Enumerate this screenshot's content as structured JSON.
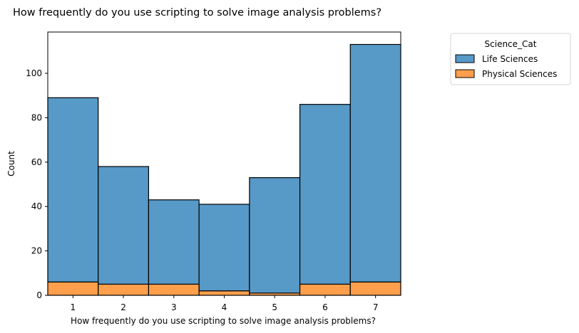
{
  "chart_data": {
    "type": "bar",
    "title": "How frequently do you use scripting to solve image analysis problems?",
    "xlabel": "How frequently do you use scripting to solve image analysis problems?",
    "ylabel": "Count",
    "categories": [
      "1",
      "2",
      "3",
      "4",
      "5",
      "6",
      "7"
    ],
    "stacked": true,
    "series": [
      {
        "name": "Physical Sciences",
        "color": "#ff9f4b",
        "values": [
          6,
          5,
          5,
          2,
          1,
          5,
          6
        ]
      },
      {
        "name": "Life Sciences",
        "color": "#5799c7",
        "values": [
          83,
          53,
          38,
          39,
          52,
          81,
          107
        ]
      }
    ],
    "totals": [
      89,
      58,
      43,
      41,
      53,
      86,
      113
    ],
    "ylim": [
      0,
      118.6
    ],
    "yticks": [
      0,
      20,
      40,
      60,
      80,
      100
    ],
    "legend": {
      "title": "Science_Cat",
      "placement": "outside-right",
      "entries": [
        "Life Sciences",
        "Physical Sciences"
      ]
    },
    "grid": false
  }
}
